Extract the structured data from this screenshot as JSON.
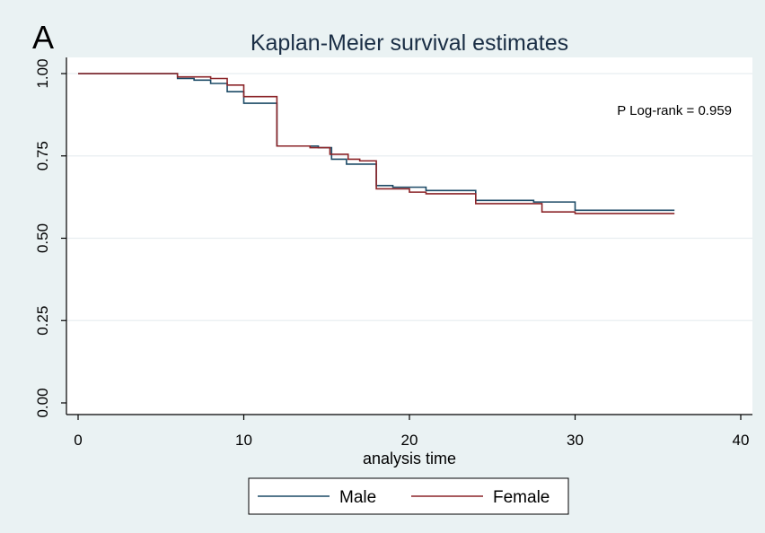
{
  "panel_label": "A",
  "chart_data": {
    "type": "line",
    "title": "Kaplan-Meier survival estimates",
    "xlabel": "analysis time",
    "ylabel": "",
    "xlim": [
      0,
      40
    ],
    "ylim": [
      0,
      1
    ],
    "x_ticks": [
      0,
      10,
      20,
      30,
      40
    ],
    "y_ticks": [
      0,
      0.25,
      0.5,
      0.75,
      1
    ],
    "x_tick_labels": [
      "0",
      "10",
      "20",
      "30",
      "40"
    ],
    "y_tick_labels": [
      "0.00",
      "0.25",
      "0.50",
      "0.75",
      "1.00"
    ],
    "grid": "horizontal",
    "step": true,
    "annotation": "P Log-rank = 0.959",
    "legend_position": "bottom",
    "series": [
      {
        "name": "Male",
        "color": "#1c4a66",
        "x": [
          0,
          6,
          7,
          8,
          9,
          10,
          12,
          14.5,
          15.3,
          16.2,
          18,
          19,
          21,
          24,
          27.5,
          30,
          36
        ],
        "y": [
          1.0,
          0.985,
          0.98,
          0.97,
          0.945,
          0.91,
          0.78,
          0.775,
          0.74,
          0.725,
          0.66,
          0.655,
          0.645,
          0.615,
          0.61,
          0.585,
          0.585
        ]
      },
      {
        "name": "Female",
        "color": "#8b2428",
        "x": [
          0,
          6,
          8,
          9,
          10,
          12,
          14,
          15.2,
          16.3,
          17,
          18,
          20,
          21,
          24,
          28,
          30,
          36
        ],
        "y": [
          1.0,
          0.99,
          0.985,
          0.965,
          0.93,
          0.78,
          0.775,
          0.755,
          0.74,
          0.735,
          0.65,
          0.64,
          0.635,
          0.605,
          0.58,
          0.575,
          0.575
        ]
      }
    ]
  }
}
